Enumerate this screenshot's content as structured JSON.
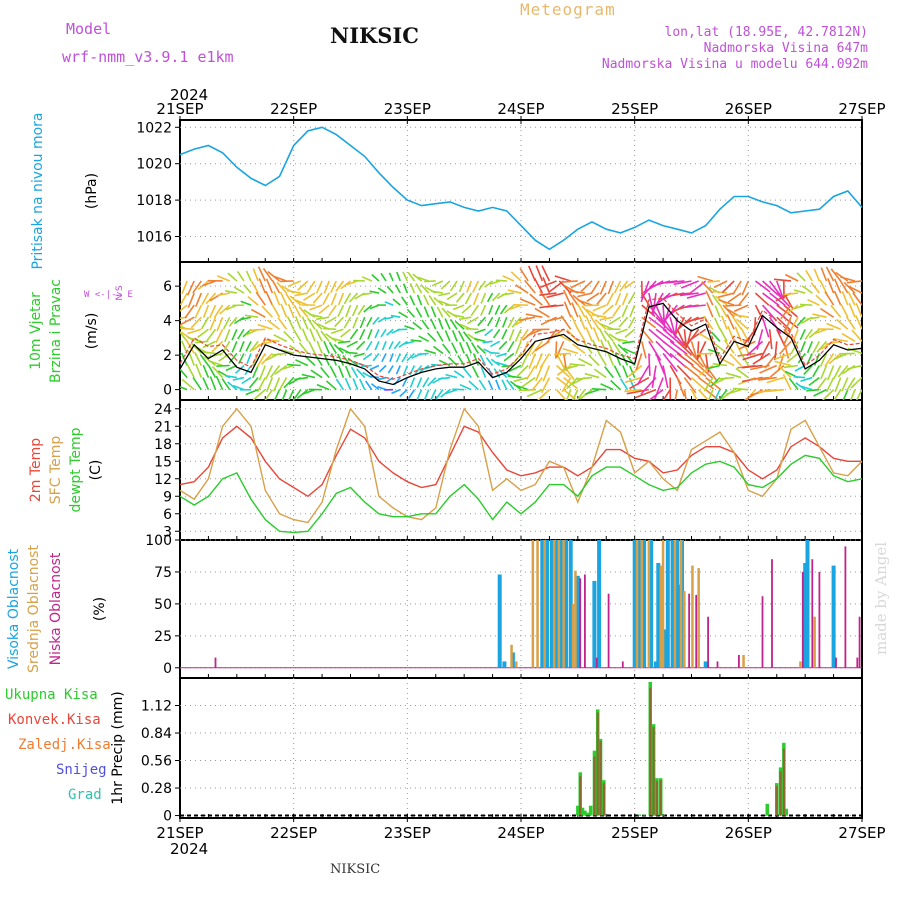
{
  "header": {
    "model_label": "Model",
    "model_name": "wrf-nmm_v3.9.1  e1km",
    "title": "NIKSIC",
    "meteogram": "Meteogram",
    "lonlat": "lon,lat (18.95E, 42.7812N)",
    "elevation": "Nadmorska Visina 647m",
    "model_elevation": "Nadmorska Visina u modelu 644.092m"
  },
  "footer": {
    "station": "NIKSIC",
    "credit": "made by Angel"
  },
  "time_axis": {
    "year": "2024",
    "ticks": [
      "21SEP",
      "22SEP",
      "23SEP",
      "24SEP",
      "25SEP",
      "26SEP",
      "27SEP"
    ]
  },
  "colors": {
    "pressure": "#1aa5e0",
    "temp2m": "#e8473a",
    "sfc": "#d8a048",
    "dew": "#2ccc2c",
    "high_cloud": "#1aa5e0",
    "mid_cloud": "#d8a048",
    "low_cloud": "#c0248c",
    "total_precip": "#2ccc2c",
    "conv_precip": "#e8473a",
    "ice": "#f07c30",
    "snow": "#5050e0",
    "grad": "#30c0b0"
  },
  "chart_data": [
    {
      "type": "line",
      "panel": "pressure",
      "ylabel_name": "Pritisak na nivou mora",
      "ylabel_unit": "(hPa)",
      "yticks": [
        "1016",
        "1018",
        "1020",
        "1022"
      ],
      "ylim": [
        1014.6,
        1022.4
      ],
      "grid": true,
      "x_hours": [
        0,
        3,
        6,
        9,
        12,
        15,
        18,
        21,
        24,
        27,
        30,
        33,
        36,
        39,
        42,
        45,
        48,
        51,
        54,
        57,
        60,
        63,
        66,
        69,
        72,
        75,
        78,
        81,
        84,
        87,
        90,
        93,
        96,
        99,
        102,
        105,
        108,
        111,
        114,
        117,
        120,
        123,
        126,
        129,
        132,
        135,
        138,
        141,
        144
      ],
      "values": [
        1020.5,
        1020.8,
        1021.0,
        1020.6,
        1019.8,
        1019.2,
        1018.8,
        1019.3,
        1021.0,
        1021.8,
        1022.0,
        1021.6,
        1021.0,
        1020.4,
        1019.5,
        1018.7,
        1018.0,
        1017.7,
        1017.8,
        1017.9,
        1017.6,
        1017.4,
        1017.6,
        1017.4,
        1016.6,
        1015.8,
        1015.3,
        1015.8,
        1016.4,
        1016.8,
        1016.4,
        1016.2,
        1016.5,
        1016.9,
        1016.6,
        1016.4,
        1016.2,
        1016.6,
        1017.5,
        1018.2,
        1018.2,
        1017.9,
        1017.7,
        1017.3,
        1017.4,
        1017.5,
        1018.2,
        1018.5,
        1017.6
      ]
    },
    {
      "type": "line",
      "panel": "wind",
      "ylabel_name": [
        "10m Vjetar",
        "Brzina i Pravac"
      ],
      "ylabel_unit": "(m/s)",
      "compass": "W  <-|->  E",
      "compass_ns": "N  S",
      "yticks": [
        "0",
        "2",
        "4",
        "6"
      ],
      "ylim": [
        -0.6,
        7.4
      ],
      "x_hours": [
        0,
        3,
        6,
        9,
        12,
        15,
        18,
        21,
        24,
        27,
        30,
        33,
        36,
        39,
        42,
        45,
        48,
        51,
        54,
        57,
        60,
        63,
        66,
        69,
        72,
        75,
        78,
        81,
        84,
        87,
        90,
        93,
        96,
        99,
        102,
        105,
        108,
        111,
        114,
        117,
        120,
        123,
        126,
        129,
        132,
        135,
        138,
        141,
        144
      ],
      "speed": [
        1.2,
        2.6,
        1.8,
        2.3,
        1.3,
        1.0,
        2.6,
        2.3,
        2.0,
        1.9,
        1.8,
        1.7,
        1.5,
        1.2,
        0.5,
        0.3,
        0.7,
        1.0,
        1.2,
        1.3,
        1.3,
        1.6,
        0.7,
        1.0,
        1.8,
        2.8,
        3.0,
        3.2,
        2.6,
        2.4,
        2.2,
        1.8,
        1.5,
        4.8,
        5.0,
        4.0,
        3.4,
        3.8,
        1.5,
        2.8,
        2.5,
        4.3,
        3.6,
        3.0,
        1.2,
        1.7,
        2.6,
        2.3,
        2.4
      ],
      "gust": [
        1.5,
        3.0,
        2.5,
        2.6,
        1.7,
        1.3,
        3.0,
        2.6,
        2.3,
        2.1,
        2.0,
        1.9,
        1.7,
        1.4,
        0.8,
        0.6,
        0.9,
        1.2,
        1.4,
        1.5,
        1.5,
        1.8,
        0.9,
        1.2,
        2.0,
        3.2,
        3.3,
        3.5,
        2.9,
        2.6,
        2.4,
        2.0,
        1.8,
        5.2,
        5.3,
        4.4,
        3.7,
        4.1,
        1.8,
        3.1,
        2.8,
        4.6,
        4.0,
        3.3,
        1.4,
        2.0,
        2.9,
        2.6,
        2.7
      ]
    },
    {
      "type": "line",
      "panel": "temperature",
      "ylabel_name": [
        "2m Temp",
        "SFC Temp",
        "dewpt Temp"
      ],
      "ylabel_unit": "(C)",
      "yticks": [
        "3",
        "6",
        "9",
        "12",
        "15",
        "18",
        "21",
        "24"
      ],
      "ylim": [
        1.5,
        25.5
      ],
      "x_hours": [
        0,
        3,
        6,
        9,
        12,
        15,
        18,
        21,
        24,
        27,
        30,
        33,
        36,
        39,
        42,
        45,
        48,
        51,
        54,
        57,
        60,
        63,
        66,
        69,
        72,
        75,
        78,
        81,
        84,
        87,
        90,
        93,
        96,
        99,
        102,
        105,
        108,
        111,
        114,
        117,
        120,
        123,
        126,
        129,
        132,
        135,
        138,
        141,
        144
      ],
      "series": [
        {
          "name": "2m Temp",
          "values": [
            11,
            11.5,
            14,
            19,
            21,
            19,
            15,
            12,
            10.5,
            9,
            11,
            16,
            20.5,
            19,
            15,
            13,
            11.5,
            10.5,
            11,
            16,
            21,
            20,
            16.5,
            13.5,
            12.5,
            13,
            14,
            14,
            12.5,
            14,
            17,
            17,
            15.5,
            15,
            13,
            13.5,
            16,
            17.5,
            17.5,
            16.5,
            13.5,
            12,
            13.5,
            17.5,
            19,
            17.5,
            15.5,
            15,
            15
          ]
        },
        {
          "name": "SFC Temp",
          "values": [
            10,
            8.5,
            12,
            21,
            24,
            21,
            10,
            6,
            5,
            4.5,
            8,
            17,
            24,
            21,
            9,
            7,
            5.5,
            5,
            7,
            17,
            24,
            21,
            10,
            12,
            10,
            11,
            15,
            14,
            8,
            14,
            22,
            20,
            13,
            15,
            12,
            10,
            17,
            18.5,
            20,
            16.5,
            10,
            9,
            12,
            20.5,
            22,
            17.5,
            13,
            12.5,
            15
          ]
        },
        {
          "name": "dewpt Temp",
          "values": [
            9,
            7.5,
            9,
            12,
            13,
            8.5,
            5,
            3,
            2.8,
            3,
            6,
            9.5,
            10.5,
            8,
            6,
            5.5,
            5.5,
            6,
            6,
            9,
            11,
            8.5,
            5,
            8,
            6,
            8,
            11,
            11,
            9,
            12.5,
            14,
            14,
            12.5,
            11,
            10,
            10.5,
            13,
            14.5,
            15,
            14,
            11,
            10.5,
            12,
            14.5,
            16,
            15.5,
            12.5,
            11.5,
            12
          ]
        }
      ]
    },
    {
      "type": "bar",
      "panel": "cloud",
      "ylabel_name": [
        "Visoka Oblacnost",
        "Srednja Oblacnost",
        "Niska Oblacnost"
      ],
      "ylabel_unit": "(%)",
      "yticks": [
        "0",
        "25",
        "50",
        "75",
        "100"
      ],
      "ylim": [
        -8,
        100
      ],
      "series": [
        {
          "name": "Visoka Oblacnost",
          "bars": [
            [
              67.5,
              73
            ],
            [
              68.5,
              5
            ],
            [
              70.3,
              12
            ],
            [
              76.5,
              100
            ],
            [
              77.5,
              100
            ],
            [
              78.5,
              100
            ],
            [
              79.5,
              100
            ],
            [
              80.5,
              100
            ],
            [
              81.5,
              100
            ],
            [
              82.5,
              100
            ],
            [
              84,
              72
            ],
            [
              87.5,
              68
            ],
            [
              88.5,
              100
            ],
            [
              96,
              100
            ],
            [
              97,
              100
            ],
            [
              98,
              100
            ],
            [
              99.5,
              100
            ],
            [
              100.5,
              5
            ],
            [
              101,
              82
            ],
            [
              102.5,
              30
            ],
            [
              103,
              100
            ],
            [
              104,
              100
            ],
            [
              105,
              100
            ],
            [
              105.5,
              65
            ],
            [
              106,
              100
            ],
            [
              111,
              5
            ],
            [
              132,
              82
            ],
            [
              132.5,
              100
            ],
            [
              138,
              80
            ]
          ]
        },
        {
          "name": "Srednja Oblacnost",
          "bars": [
            [
              70,
              18
            ],
            [
              71,
              5
            ],
            [
              74.5,
              100
            ],
            [
              75.5,
              100
            ],
            [
              77,
              100
            ],
            [
              79,
              100
            ],
            [
              80,
              100
            ],
            [
              81,
              100
            ],
            [
              83,
              50
            ],
            [
              83.5,
              76
            ],
            [
              96.5,
              100
            ],
            [
              97.5,
              100
            ],
            [
              99,
              100
            ],
            [
              101.5,
              80
            ],
            [
              102,
              100
            ],
            [
              104.5,
              100
            ],
            [
              105.8,
              100
            ],
            [
              106.5,
              60
            ],
            [
              108.2,
              80
            ],
            [
              109.5,
              78
            ],
            [
              119,
              10
            ],
            [
              131,
              5
            ],
            [
              134,
              40
            ]
          ]
        },
        {
          "name": "Niska Oblacnost",
          "bars": [
            [
              7.5,
              8
            ],
            [
              84.5,
              70
            ],
            [
              85.5,
              73
            ],
            [
              88,
              8
            ],
            [
              90.5,
              58
            ],
            [
              93.5,
              5
            ],
            [
              107.5,
              58
            ],
            [
              109,
              57
            ],
            [
              111.5,
              40
            ],
            [
              113.5,
              5
            ],
            [
              118,
              10
            ],
            [
              123,
              56
            ],
            [
              125,
              85
            ],
            [
              131.5,
              75
            ],
            [
              133.5,
              85
            ],
            [
              135,
              75
            ],
            [
              138.5,
              8
            ],
            [
              140.5,
              95
            ],
            [
              143,
              8
            ],
            [
              143.5,
              40
            ]
          ]
        }
      ]
    },
    {
      "type": "bar",
      "panel": "precip",
      "ylabel_name": "1hr Precip",
      "ylabel_unit": "(mm)",
      "legend": [
        "Ukupna Kisa",
        "Konvek.Kisa",
        "Zaledj.Kisa",
        "Snijeg",
        "Grad"
      ],
      "yticks": [
        "0",
        "0.28",
        "0.56",
        "0.84",
        "1.12"
      ],
      "ylim": [
        -0.025,
        1.4
      ],
      "series": [
        {
          "name": "Ukupna Kisa",
          "bars": [
            [
              84,
              0.1
            ],
            [
              84.5,
              0.44
            ],
            [
              85,
              0.08
            ],
            [
              85.5,
              0.05
            ],
            [
              86,
              0.03
            ],
            [
              86.7,
              0.1
            ],
            [
              87.5,
              0.66
            ],
            [
              88.2,
              1.08
            ],
            [
              88.8,
              0.78
            ],
            [
              89.5,
              0.36
            ],
            [
              97,
              0.01
            ],
            [
              98,
              0.01
            ],
            [
              99.3,
              1.36
            ],
            [
              100,
              0.93
            ],
            [
              100.7,
              0.38
            ],
            [
              101.5,
              0.38
            ],
            [
              102,
              0.01
            ],
            [
              124,
              0.12
            ],
            [
              126,
              0.33
            ],
            [
              126.8,
              0.49
            ],
            [
              127.5,
              0.74
            ],
            [
              128,
              0.07
            ]
          ]
        },
        {
          "name": "Konvek.Kisa",
          "bars": [
            [
              84.5,
              0.4
            ],
            [
              87.5,
              0.6
            ],
            [
              88.2,
              1.05
            ],
            [
              88.8,
              0.76
            ],
            [
              89.5,
              0.33
            ],
            [
              99.3,
              1.3
            ],
            [
              100,
              0.9
            ],
            [
              100.7,
              0.35
            ],
            [
              101.5,
              0.36
            ],
            [
              126,
              0.3
            ],
            [
              126.8,
              0.45
            ],
            [
              127.5,
              0.68
            ]
          ]
        }
      ]
    }
  ]
}
